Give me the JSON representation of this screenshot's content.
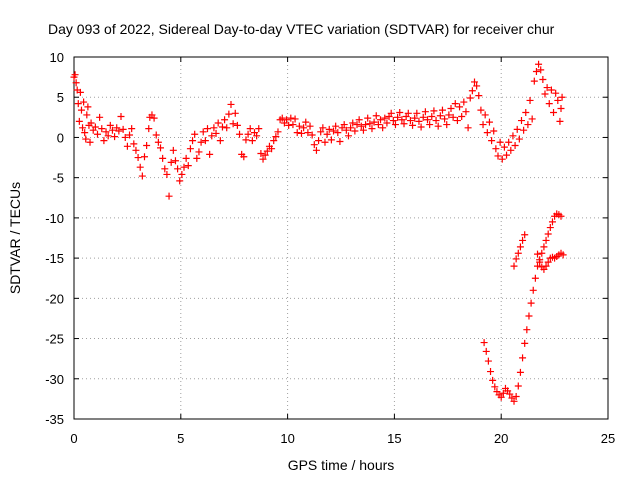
{
  "chart_data": {
    "type": "scatter",
    "title": "Day 093 of 2022, Sidereal Day-to-day VTEC variation (SDTVAR) for receiver chur",
    "xlabel": "GPS time / hours",
    "ylabel": "SDTVAR / TECUs",
    "xlim": [
      0,
      25
    ],
    "ylim": [
      -35,
      10
    ],
    "xticks": [
      0,
      5,
      10,
      15,
      20,
      25
    ],
    "yticks": [
      10,
      5,
      0,
      -5,
      -10,
      -15,
      -20,
      -25,
      -30,
      -35
    ],
    "grid": true,
    "marker": "+",
    "color": "#ff0000",
    "series": [
      {
        "name": "SDTVAR",
        "points": [
          [
            0.0,
            7.5
          ],
          [
            0.05,
            7.8
          ],
          [
            0.1,
            6.8
          ],
          [
            0.15,
            5.9
          ],
          [
            0.2,
            4.2
          ],
          [
            0.25,
            2.0
          ],
          [
            0.3,
            5.6
          ],
          [
            0.35,
            3.4
          ],
          [
            0.4,
            1.2
          ],
          [
            0.45,
            4.4
          ],
          [
            0.5,
            0.6
          ],
          [
            0.55,
            -0.2
          ],
          [
            0.6,
            2.8
          ],
          [
            0.65,
            3.8
          ],
          [
            0.7,
            1.5
          ],
          [
            0.75,
            -0.6
          ],
          [
            0.8,
            1.8
          ],
          [
            0.9,
            0.9
          ],
          [
            1.0,
            1.3
          ],
          [
            1.1,
            0.4
          ],
          [
            1.2,
            2.5
          ],
          [
            1.3,
            1.1
          ],
          [
            1.4,
            -0.4
          ],
          [
            1.5,
            0.7
          ],
          [
            1.6,
            0.2
          ],
          [
            1.7,
            1.5
          ],
          [
            1.8,
            0.9
          ],
          [
            1.9,
            0.1
          ],
          [
            2.0,
            1.2
          ],
          [
            2.1,
            0.8
          ],
          [
            2.2,
            2.6
          ],
          [
            2.3,
            1.0
          ],
          [
            2.4,
            0.0
          ],
          [
            2.5,
            -1.1
          ],
          [
            2.6,
            0.3
          ],
          [
            2.7,
            1.1
          ],
          [
            2.8,
            -0.8
          ],
          [
            2.9,
            -1.6
          ],
          [
            3.0,
            -2.5
          ],
          [
            3.1,
            -3.7
          ],
          [
            3.2,
            -4.8
          ],
          [
            3.3,
            -2.4
          ],
          [
            3.4,
            -1.0
          ],
          [
            3.5,
            1.1
          ],
          [
            3.55,
            2.5
          ],
          [
            3.65,
            2.8
          ],
          [
            3.75,
            2.4
          ],
          [
            3.85,
            0.3
          ],
          [
            3.95,
            -0.6
          ],
          [
            4.05,
            -1.3
          ],
          [
            4.15,
            -2.6
          ],
          [
            4.25,
            -3.9
          ],
          [
            4.35,
            -4.6
          ],
          [
            4.45,
            -7.3
          ],
          [
            4.55,
            -3.1
          ],
          [
            4.65,
            -1.6
          ],
          [
            4.75,
            -2.9
          ],
          [
            4.85,
            -3.9
          ],
          [
            4.95,
            -5.4
          ],
          [
            5.05,
            -4.6
          ],
          [
            5.15,
            -3.7
          ],
          [
            5.25,
            -2.6
          ],
          [
            5.35,
            -3.5
          ],
          [
            5.45,
            -1.4
          ],
          [
            5.55,
            -0.4
          ],
          [
            5.65,
            0.4
          ],
          [
            5.75,
            -2.6
          ],
          [
            5.85,
            -1.8
          ],
          [
            5.95,
            -0.6
          ],
          [
            6.05,
            0.7
          ],
          [
            6.15,
            -0.4
          ],
          [
            6.25,
            1.1
          ],
          [
            6.35,
            -2.1
          ],
          [
            6.45,
            0.2
          ],
          [
            6.55,
            1.2
          ],
          [
            6.65,
            0.5
          ],
          [
            6.75,
            1.8
          ],
          [
            6.85,
            -0.4
          ],
          [
            6.95,
            1.3
          ],
          [
            7.05,
            2.2
          ],
          [
            7.15,
            1.2
          ],
          [
            7.25,
            2.9
          ],
          [
            7.35,
            4.1
          ],
          [
            7.45,
            1.7
          ],
          [
            7.55,
            3.0
          ],
          [
            7.65,
            1.5
          ],
          [
            7.75,
            0.4
          ],
          [
            7.85,
            -2.1
          ],
          [
            7.95,
            -2.4
          ],
          [
            8.05,
            -0.3
          ],
          [
            8.15,
            0.4
          ],
          [
            8.25,
            1.1
          ],
          [
            8.35,
            -0.4
          ],
          [
            8.45,
            0.6
          ],
          [
            8.55,
            0.2
          ],
          [
            8.65,
            1.1
          ],
          [
            8.75,
            -2.0
          ],
          [
            8.85,
            -2.7
          ],
          [
            8.95,
            -2.2
          ],
          [
            9.05,
            -1.7
          ],
          [
            9.15,
            -1.1
          ],
          [
            9.25,
            -1.4
          ],
          [
            9.35,
            -0.4
          ],
          [
            9.45,
            0.1
          ],
          [
            9.55,
            0.7
          ],
          [
            9.65,
            2.2
          ],
          [
            9.75,
            2.4
          ],
          [
            9.85,
            1.8
          ],
          [
            9.95,
            2.2
          ],
          [
            10.05,
            1.5
          ],
          [
            10.15,
            2.4
          ],
          [
            10.25,
            1.6
          ],
          [
            10.35,
            2.3
          ],
          [
            10.45,
            0.6
          ],
          [
            10.55,
            1.4
          ],
          [
            10.65,
            0.5
          ],
          [
            10.75,
            1.2
          ],
          [
            10.85,
            1.9
          ],
          [
            10.95,
            0.6
          ],
          [
            11.05,
            1.4
          ],
          [
            11.15,
            0.3
          ],
          [
            11.25,
            -0.9
          ],
          [
            11.35,
            -1.6
          ],
          [
            11.45,
            -0.4
          ],
          [
            11.55,
            0.7
          ],
          [
            11.65,
            1.2
          ],
          [
            11.75,
            -0.6
          ],
          [
            11.85,
            0.4
          ],
          [
            11.95,
            1.0
          ],
          [
            12.05,
            -0.3
          ],
          [
            12.15,
            0.8
          ],
          [
            12.25,
            1.4
          ],
          [
            12.35,
            0.6
          ],
          [
            12.45,
            -0.5
          ],
          [
            12.55,
            1.2
          ],
          [
            12.65,
            1.6
          ],
          [
            12.75,
            0.9
          ],
          [
            12.85,
            0.2
          ],
          [
            12.95,
            1.2
          ],
          [
            13.05,
            1.8
          ],
          [
            13.15,
            0.8
          ],
          [
            13.25,
            1.6
          ],
          [
            13.35,
            2.2
          ],
          [
            13.45,
            1.4
          ],
          [
            13.55,
            0.9
          ],
          [
            13.65,
            1.6
          ],
          [
            13.75,
            2.4
          ],
          [
            13.85,
            1.7
          ],
          [
            13.95,
            1.1
          ],
          [
            14.05,
            1.9
          ],
          [
            14.15,
            2.7
          ],
          [
            14.25,
            1.6
          ],
          [
            14.35,
            2.2
          ],
          [
            14.45,
            1.2
          ],
          [
            14.55,
            2.4
          ],
          [
            14.65,
            1.8
          ],
          [
            14.75,
            2.6
          ],
          [
            14.85,
            3.0
          ],
          [
            14.95,
            2.1
          ],
          [
            15.05,
            1.6
          ],
          [
            15.15,
            2.5
          ],
          [
            15.25,
            3.1
          ],
          [
            15.35,
            2.2
          ],
          [
            15.45,
            1.7
          ],
          [
            15.55,
            2.6
          ],
          [
            15.65,
            3.0
          ],
          [
            15.75,
            2.1
          ],
          [
            15.85,
            1.5
          ],
          [
            15.95,
            2.4
          ],
          [
            16.05,
            3.0
          ],
          [
            16.15,
            2.0
          ],
          [
            16.25,
            1.3
          ],
          [
            16.35,
            2.5
          ],
          [
            16.45,
            3.2
          ],
          [
            16.55,
            2.2
          ],
          [
            16.65,
            1.6
          ],
          [
            16.75,
            2.6
          ],
          [
            16.85,
            3.3
          ],
          [
            16.95,
            2.1
          ],
          [
            17.05,
            1.4
          ],
          [
            17.15,
            2.7
          ],
          [
            17.25,
            3.4
          ],
          [
            17.35,
            2.3
          ],
          [
            17.45,
            1.6
          ],
          [
            17.55,
            2.8
          ],
          [
            17.65,
            3.6
          ],
          [
            17.75,
            2.5
          ],
          [
            17.85,
            4.2
          ],
          [
            17.95,
            2.1
          ],
          [
            18.05,
            3.8
          ],
          [
            18.15,
            2.6
          ],
          [
            18.25,
            4.4
          ],
          [
            18.35,
            3.2
          ],
          [
            18.45,
            1.2
          ],
          [
            18.55,
            4.9
          ],
          [
            18.65,
            5.8
          ],
          [
            18.75,
            6.9
          ],
          [
            18.85,
            6.4
          ],
          [
            18.95,
            5.2
          ],
          [
            19.05,
            3.4
          ],
          [
            19.15,
            1.6
          ],
          [
            19.25,
            2.8
          ],
          [
            19.35,
            0.6
          ],
          [
            19.45,
            1.9
          ],
          [
            19.55,
            -0.4
          ],
          [
            19.65,
            0.8
          ],
          [
            19.75,
            -1.4
          ],
          [
            19.85,
            -2.3
          ],
          [
            19.95,
            -0.6
          ],
          [
            20.05,
            -2.7
          ],
          [
            20.15,
            -1.2
          ],
          [
            20.25,
            -2.2
          ],
          [
            20.35,
            -0.6
          ],
          [
            20.45,
            -1.6
          ],
          [
            20.55,
            0.2
          ],
          [
            20.65,
            -1.0
          ],
          [
            20.75,
            1.0
          ],
          [
            20.85,
            -0.2
          ],
          [
            20.95,
            2.1
          ],
          [
            21.05,
            0.9
          ],
          [
            21.15,
            3.1
          ],
          [
            21.25,
            1.6
          ],
          [
            21.35,
            4.6
          ],
          [
            21.45,
            2.3
          ],
          [
            21.55,
            7.0
          ],
          [
            21.65,
            8.2
          ],
          [
            21.75,
            9.1
          ],
          [
            21.85,
            8.4
          ],
          [
            21.95,
            7.2
          ],
          [
            22.05,
            5.4
          ],
          [
            22.15,
            6.2
          ],
          [
            22.25,
            4.2
          ],
          [
            22.35,
            5.9
          ],
          [
            22.45,
            3.1
          ],
          [
            22.55,
            5.5
          ],
          [
            22.65,
            4.6
          ],
          [
            22.75,
            2.0
          ],
          [
            22.8,
            3.6
          ],
          [
            22.85,
            5.0
          ],
          [
            19.2,
            -25.5
          ],
          [
            19.3,
            -26.6
          ],
          [
            19.4,
            -27.8
          ],
          [
            19.5,
            -29.1
          ],
          [
            19.6,
            -30.2
          ],
          [
            19.7,
            -31.0
          ],
          [
            19.8,
            -31.6
          ],
          [
            19.9,
            -32.0
          ],
          [
            20.0,
            -32.3
          ],
          [
            20.1,
            -31.8
          ],
          [
            20.2,
            -31.2
          ],
          [
            20.3,
            -31.5
          ],
          [
            20.4,
            -31.9
          ],
          [
            20.5,
            -32.4
          ],
          [
            20.6,
            -32.8
          ],
          [
            20.7,
            -32.2
          ],
          [
            20.8,
            -30.9
          ],
          [
            20.9,
            -29.2
          ],
          [
            21.0,
            -27.4
          ],
          [
            21.1,
            -25.6
          ],
          [
            21.2,
            -23.9
          ],
          [
            21.3,
            -22.2
          ],
          [
            21.4,
            -20.6
          ],
          [
            21.5,
            -19.0
          ],
          [
            21.6,
            -17.5
          ],
          [
            21.7,
            -16.0
          ],
          [
            21.8,
            -15.2
          ],
          [
            21.9,
            -14.4
          ],
          [
            22.0,
            -13.6
          ],
          [
            22.1,
            -12.8
          ],
          [
            22.2,
            -12.0
          ],
          [
            22.3,
            -11.2
          ],
          [
            22.4,
            -10.5
          ],
          [
            22.5,
            -9.8
          ],
          [
            22.6,
            -9.5
          ],
          [
            22.7,
            -9.6
          ],
          [
            22.8,
            -9.8
          ],
          [
            20.6,
            -16.0
          ],
          [
            20.7,
            -15.1
          ],
          [
            20.8,
            -14.4
          ],
          [
            20.9,
            -13.6
          ],
          [
            21.0,
            -12.8
          ],
          [
            21.1,
            -12.1
          ],
          [
            21.7,
            -14.5
          ],
          [
            21.8,
            -15.5
          ],
          [
            21.9,
            -16.1
          ],
          [
            22.0,
            -16.4
          ],
          [
            22.1,
            -16.0
          ],
          [
            22.2,
            -15.5
          ],
          [
            22.3,
            -15.0
          ],
          [
            22.4,
            -14.9
          ],
          [
            22.5,
            -15.0
          ],
          [
            22.6,
            -14.8
          ],
          [
            22.7,
            -14.6
          ],
          [
            22.8,
            -14.4
          ],
          [
            22.9,
            -14.6
          ]
        ]
      }
    ]
  }
}
